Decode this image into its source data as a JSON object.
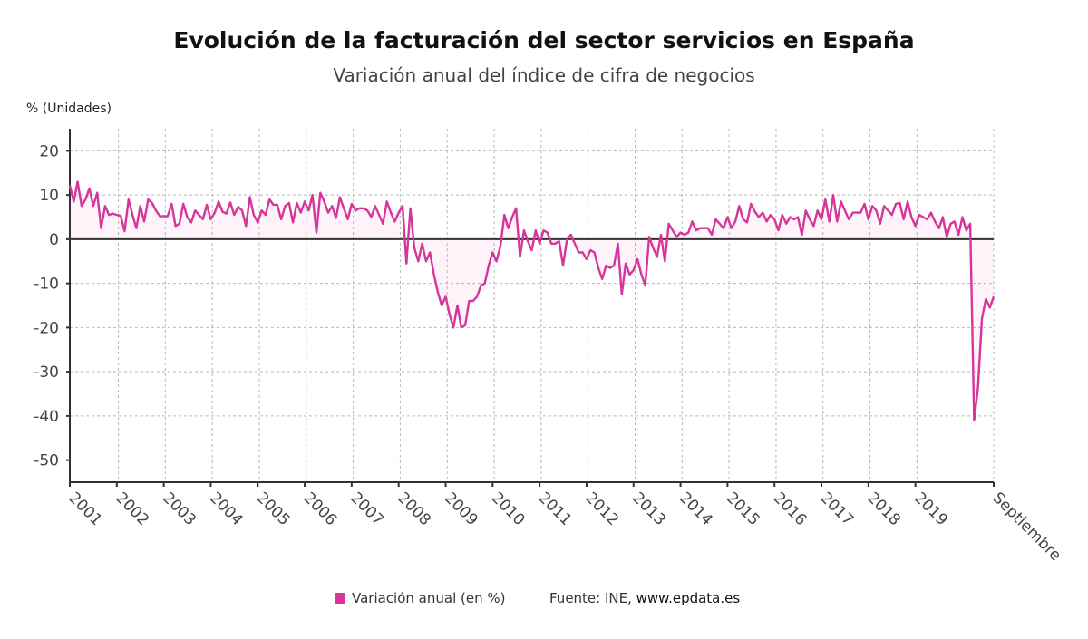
{
  "title": "Evolución de la facturación del sector servicios en España",
  "subtitle": "Variación anual del índice de cifra de negocios",
  "unit_label": "% (Unidades)",
  "legend": {
    "label": "Variación anual (en %)",
    "color": "#d6369a"
  },
  "source": {
    "prefix": "Fuente: INE, ",
    "site": "www.epdata.es"
  },
  "chart_data": {
    "type": "area",
    "title": "Evolución de la facturación del sector servicios en España",
    "subtitle": "Variación anual del índice de cifra de negocios",
    "xlabel": "",
    "ylabel": "% (Unidades)",
    "ylim": [
      -55,
      25
    ],
    "yticks": [
      20,
      10,
      0,
      -10,
      -20,
      -30,
      -40,
      -50
    ],
    "xticks": [
      "2001",
      "2002",
      "2003",
      "2004",
      "2005",
      "2006",
      "2007",
      "2008",
      "2009",
      "2010",
      "2011",
      "2012",
      "2013",
      "2014",
      "2015",
      "2016",
      "2017",
      "2018",
      "2019",
      "Septiembre"
    ],
    "grid": true,
    "legend_position": "bottom",
    "x_start": "2001-01",
    "x_end": "2020-09",
    "frequency": "monthly",
    "series": [
      {
        "name": "Variación anual (en %)",
        "color": "#d6369a",
        "values": [
          12.2,
          8.5,
          13.0,
          7.5,
          9.0,
          11.5,
          7.5,
          10.5,
          2.5,
          7.5,
          5.5,
          5.8,
          5.5,
          5.3,
          1.8,
          9.0,
          5.5,
          2.5,
          7.5,
          4.0,
          9.0,
          8.2,
          6.5,
          5.2,
          5.2,
          5.2,
          8.0,
          3.0,
          3.5,
          8.0,
          5.0,
          3.8,
          6.5,
          5.5,
          4.5,
          7.8,
          4.5,
          6.0,
          8.5,
          6.2,
          5.8,
          8.3,
          5.5,
          7.3,
          6.5,
          3.0,
          9.5,
          5.5,
          3.8,
          6.5,
          5.5,
          9.0,
          7.8,
          7.8,
          4.5,
          7.5,
          8.2,
          3.8,
          8.2,
          6.0,
          8.5,
          6.5,
          10.0,
          1.5,
          10.5,
          8.5,
          6.0,
          7.5,
          4.8,
          9.5,
          7.0,
          4.5,
          8.0,
          6.5,
          7.0,
          7.0,
          6.5,
          5.0,
          7.5,
          5.5,
          3.5,
          8.5,
          6.0,
          4.0,
          6.0,
          7.5,
          -5.5,
          7.0,
          -2.0,
          -5.0,
          -1.0,
          -5.0,
          -3.0,
          -8.0,
          -12.0,
          -15.0,
          -13.0,
          -17.0,
          -20.0,
          -15.0,
          -20.0,
          -19.5,
          -14.0,
          -14.0,
          -13.0,
          -10.5,
          -10.0,
          -6.0,
          -3.0,
          -5.0,
          -1.5,
          5.5,
          2.5,
          5.0,
          7.0,
          -4.0,
          2.0,
          -0.5,
          -2.5,
          2.0,
          -1.0,
          2.0,
          1.5,
          -1.0,
          -1.0,
          -0.5,
          -6.0,
          0.0,
          1.0,
          -1.0,
          -3.0,
          -3.0,
          -4.5,
          -2.5,
          -3.0,
          -6.5,
          -9.0,
          -6.0,
          -6.5,
          -6.0,
          -1.0,
          -12.5,
          -5.5,
          -8.0,
          -7.0,
          -4.5,
          -8.0,
          -10.5,
          0.5,
          -2.0,
          -4.0,
          1.0,
          -5.0,
          3.5,
          2.0,
          0.5,
          1.5,
          1.0,
          1.5,
          4.0,
          2.0,
          2.5,
          2.5,
          2.5,
          1.0,
          4.5,
          3.5,
          2.5,
          5.0,
          2.5,
          4.0,
          7.5,
          4.5,
          3.8,
          8.0,
          6.2,
          5.0,
          6.0,
          4.0,
          5.5,
          4.5,
          2.0,
          5.5,
          3.5,
          5.0,
          4.5,
          5.0,
          1.0,
          6.5,
          4.5,
          3.0,
          6.5,
          4.5,
          9.0,
          4.0,
          10.0,
          4.0,
          8.5,
          6.5,
          4.5,
          6.0,
          6.0,
          6.0,
          8.0,
          4.5,
          7.5,
          6.5,
          3.5,
          7.5,
          6.5,
          5.5,
          8.0,
          8.2,
          4.5,
          8.5,
          5.0,
          3.0,
          5.5,
          5.0,
          4.5,
          6.0,
          4.0,
          2.5,
          5.0,
          0.5,
          3.5,
          4.0,
          1.0,
          5.0,
          2.0,
          3.5,
          -41.0,
          -33.5,
          -18.0,
          -13.5,
          -15.5,
          -13.0
        ]
      }
    ]
  }
}
